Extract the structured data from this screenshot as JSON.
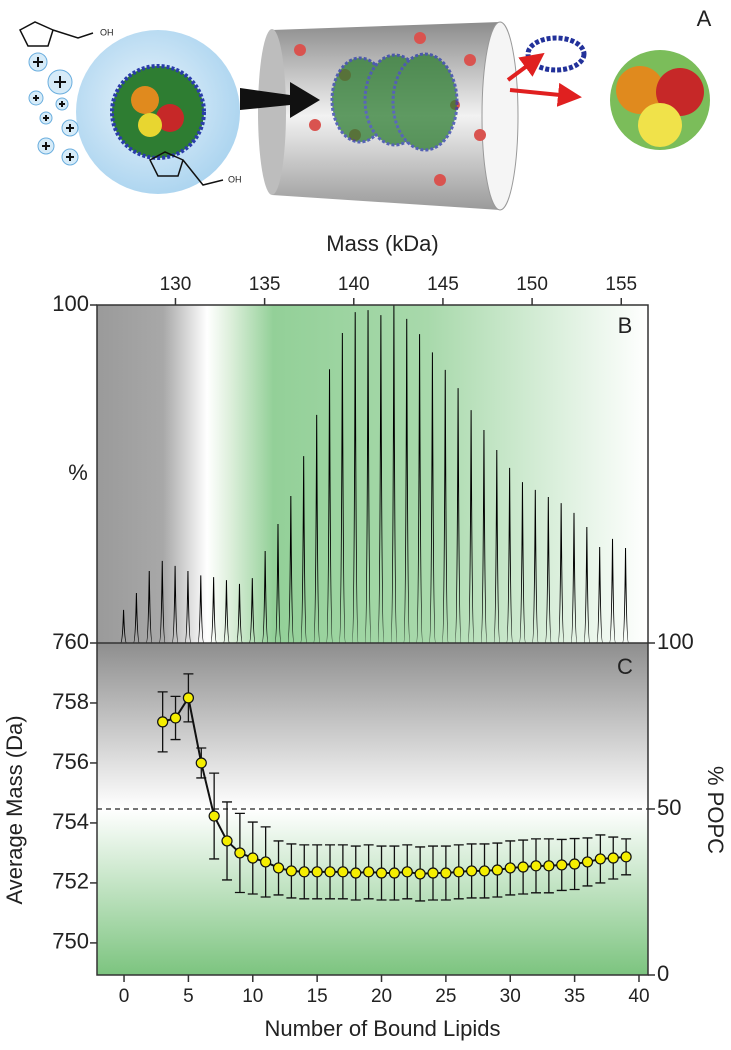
{
  "panel_a": {
    "label": "A",
    "texts": [
      "OH",
      "OH"
    ]
  },
  "chart_data": [
    {
      "type": "spectrum",
      "panel": "B",
      "xlabel": "Mass (kDa)",
      "ylabel": "%",
      "color": "#000000",
      "x": [
        127.09,
        127.81,
        128.53,
        129.26,
        129.98,
        130.7,
        131.42,
        132.14,
        132.86,
        133.59,
        134.31,
        135.03,
        135.75,
        136.47,
        137.19,
        137.92,
        138.64,
        139.36,
        140.08,
        140.8,
        141.52,
        142.25,
        142.97,
        143.69,
        144.41,
        145.13,
        145.85,
        146.58,
        147.3,
        148.02,
        148.74,
        149.46,
        150.18,
        150.91,
        151.63,
        152.35,
        153.07,
        153.79,
        154.51,
        155.24
      ],
      "values": [
        9.8,
        14.8,
        21.3,
        24.3,
        22.8,
        21.3,
        20,
        19.5,
        18.6,
        17.5,
        19.2,
        27.2,
        35.2,
        43.5,
        55.3,
        67.5,
        81,
        91.7,
        97.9,
        98.5,
        97,
        100,
        95.9,
        91.4,
        86,
        80.8,
        75.4,
        68.9,
        63,
        57.1,
        51.8,
        47.6,
        45.3,
        43.2,
        41.4,
        38.5,
        34.3,
        28.4,
        30.8,
        28.1
      ],
      "xlim": [
        125.6,
        156.5
      ],
      "xticks": [
        130,
        135,
        140,
        145,
        150,
        155
      ],
      "ylim": [
        0,
        100
      ],
      "yticks": [
        100
      ]
    },
    {
      "type": "scatter",
      "panel": "C",
      "xlabel": "Number of Bound Lipids",
      "ylabel": "Average Mass (Da)",
      "y2label": "% POPC",
      "color": "#f5ee00",
      "x": [
        3,
        4,
        5,
        6,
        7,
        8,
        9,
        10,
        11,
        12,
        13,
        14,
        15,
        16,
        17,
        18,
        19,
        20,
        21,
        22,
        23,
        24,
        25,
        26,
        27,
        28,
        29,
        30,
        31,
        32,
        33,
        34,
        35,
        36,
        37,
        38,
        39
      ],
      "values": [
        757.37,
        757.5,
        758.17,
        756.0,
        754.23,
        753.4,
        753.0,
        752.83,
        752.7,
        752.5,
        752.4,
        752.37,
        752.37,
        752.37,
        752.37,
        752.33,
        752.37,
        752.33,
        752.33,
        752.37,
        752.3,
        752.33,
        752.33,
        752.37,
        752.4,
        752.4,
        752.43,
        752.5,
        752.53,
        752.57,
        752.57,
        752.6,
        752.63,
        752.7,
        752.8,
        752.83,
        752.87
      ],
      "errors": [
        1.0,
        0.72,
        0.8,
        0.5,
        1.43,
        1.3,
        1.32,
        1.2,
        1.17,
        0.9,
        0.9,
        0.9,
        0.9,
        0.9,
        0.9,
        0.9,
        0.9,
        0.9,
        0.9,
        0.9,
        0.9,
        0.9,
        0.9,
        0.9,
        0.9,
        0.9,
        0.9,
        0.9,
        0.9,
        0.9,
        0.9,
        0.85,
        0.85,
        0.8,
        0.8,
        0.7,
        0.6
      ],
      "xlim": [
        -2.1,
        40.7
      ],
      "xticks": [
        0,
        5,
        10,
        15,
        20,
        25,
        30,
        35,
        40
      ],
      "ylim": [
        748.93,
        760
      ],
      "yticks": [
        750,
        752,
        754,
        756,
        758,
        760
      ],
      "y2lim": [
        0,
        100
      ],
      "y2ticks": [
        0,
        50,
        100
      ],
      "hline": {
        "value": 50,
        "axis": "y2"
      }
    }
  ]
}
